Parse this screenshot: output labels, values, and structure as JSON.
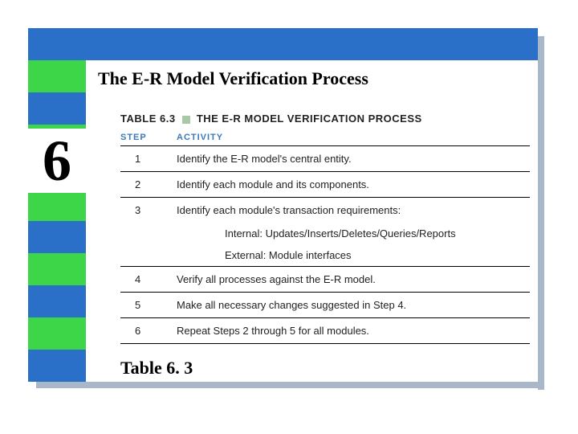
{
  "slide": {
    "title": "The E-R Model Verification Process",
    "chapter_number": "6",
    "figure_label": "Table 6. 3"
  },
  "colors": {
    "blue": "#2a70c8",
    "green": "#3cd648",
    "header_text": "#3a7ab8",
    "shadow": "#a8b8c8",
    "caption_square": "#a8c8a8",
    "background": "#ffffff"
  },
  "table": {
    "caption_prefix": "TABLE 6.3",
    "caption_title": "THE E-R MODEL VERIFICATION PROCESS",
    "header": {
      "step": "STEP",
      "activity": "ACTIVITY"
    },
    "rows": [
      {
        "step": "1",
        "activity": "Identify the E-R model's central entity."
      },
      {
        "step": "2",
        "activity": "Identify each module and its components."
      },
      {
        "step": "3",
        "activity": "Identify each module's transaction requirements:"
      }
    ],
    "sub_rows": [
      "Internal: Updates/Inserts/Deletes/Queries/Reports",
      "External: Module interfaces"
    ],
    "rows_after": [
      {
        "step": "4",
        "activity": "Verify all processes against the E-R model."
      },
      {
        "step": "5",
        "activity": "Make all necessary changes suggested in Step 4."
      },
      {
        "step": "6",
        "activity": "Repeat Steps 2 through 5 for all modules."
      }
    ]
  }
}
